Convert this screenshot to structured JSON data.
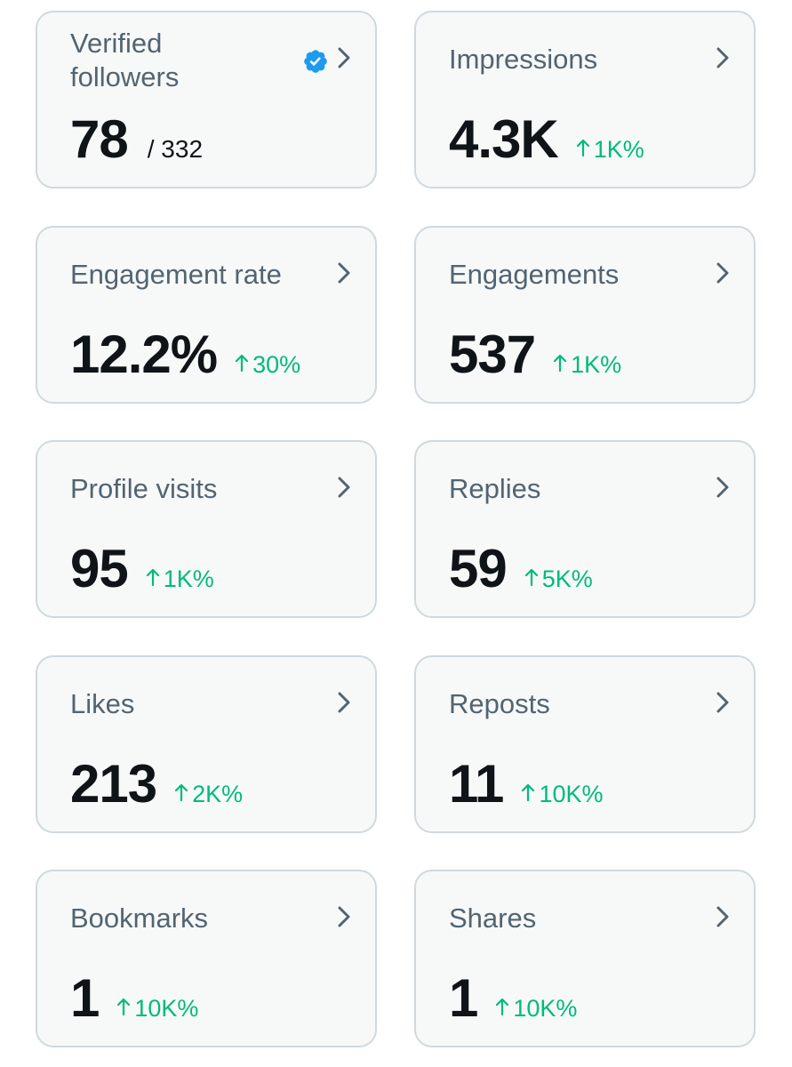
{
  "colors": {
    "card_bg": "#f7f9f9",
    "card_border": "#cfd9de",
    "label": "#536471",
    "value": "#0f1419",
    "positive_delta": "#00ba7c",
    "verified_badge": "#1d9bf0"
  },
  "icons": {
    "card_chevron": "chevron-right-icon",
    "verified": "verified-badge-icon",
    "delta": "arrow-up-icon"
  },
  "metrics": [
    {
      "label": "Verified followers",
      "value": "78",
      "total": "/ 332"
    },
    {
      "label": "Impressions",
      "value": "4.3K",
      "delta": "1K%"
    },
    {
      "label": "Engagement rate",
      "value": "12.2%",
      "delta": "30%"
    },
    {
      "label": "Engagements",
      "value": "537",
      "delta": "1K%"
    },
    {
      "label": "Profile visits",
      "value": "95",
      "delta": "1K%"
    },
    {
      "label": "Replies",
      "value": "59",
      "delta": "5K%"
    },
    {
      "label": "Likes",
      "value": "213",
      "delta": "2K%"
    },
    {
      "label": "Reposts",
      "value": "11",
      "delta": "10K%"
    },
    {
      "label": "Bookmarks",
      "value": "1",
      "delta": "10K%"
    },
    {
      "label": "Shares",
      "value": "1",
      "delta": "10K%"
    }
  ]
}
